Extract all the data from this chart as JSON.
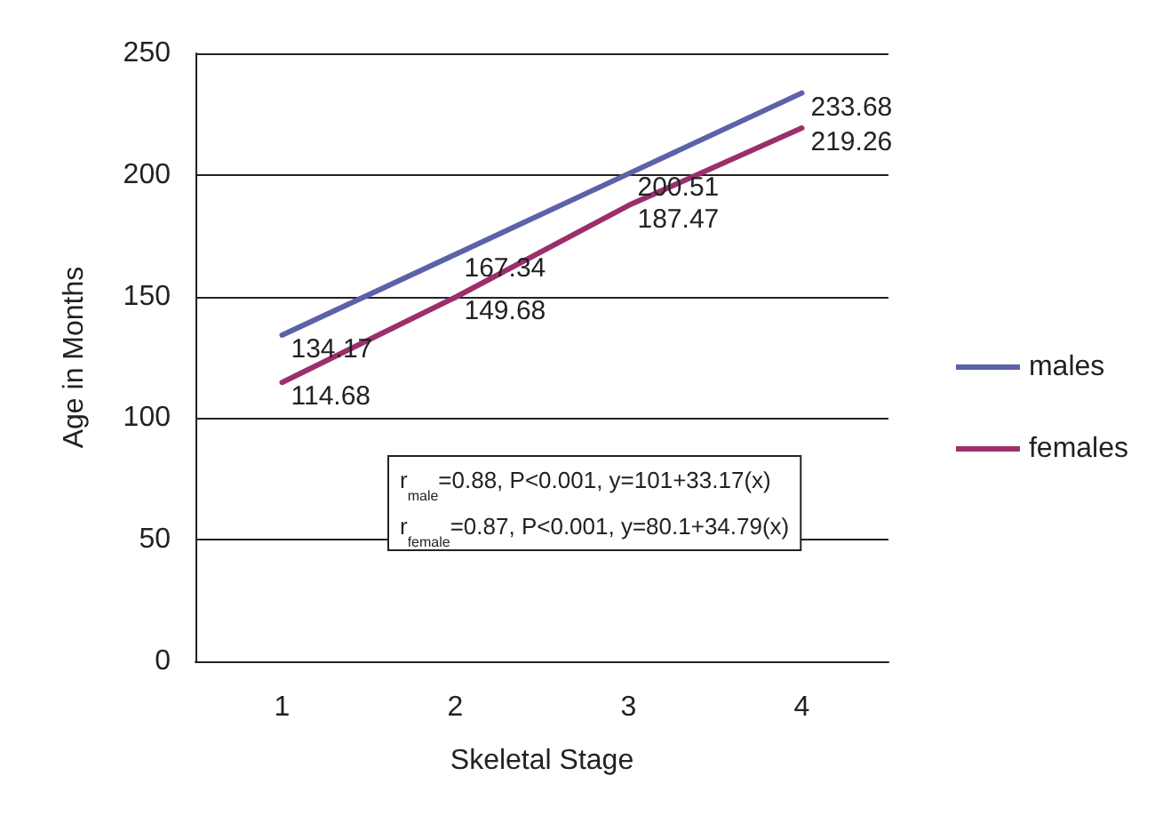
{
  "chart_data": {
    "type": "line",
    "xlabel": "Skeletal Stage",
    "ylabel": "Age in Months",
    "categories": [
      "1",
      "2",
      "3",
      "4"
    ],
    "series": [
      {
        "name": "males",
        "color": "#5b62a8",
        "values": [
          134.17,
          167.34,
          200.51,
          233.68
        ]
      },
      {
        "name": "females",
        "color": "#9c2f6b",
        "values": [
          114.68,
          149.68,
          187.47,
          219.26
        ]
      }
    ],
    "ylim": [
      0,
      250
    ],
    "yticks": [
      0,
      50,
      100,
      150,
      200,
      250
    ],
    "grid": "y",
    "legend": "right",
    "marker": "none",
    "line_style": "solid",
    "data_labels": true,
    "annotations": [
      "r$_{male}$=0.88, P<0.001, y=101+33.17(x)",
      "r$_{female}$=0.87, P<0.001, y=80.1+34.79(x)"
    ]
  }
}
